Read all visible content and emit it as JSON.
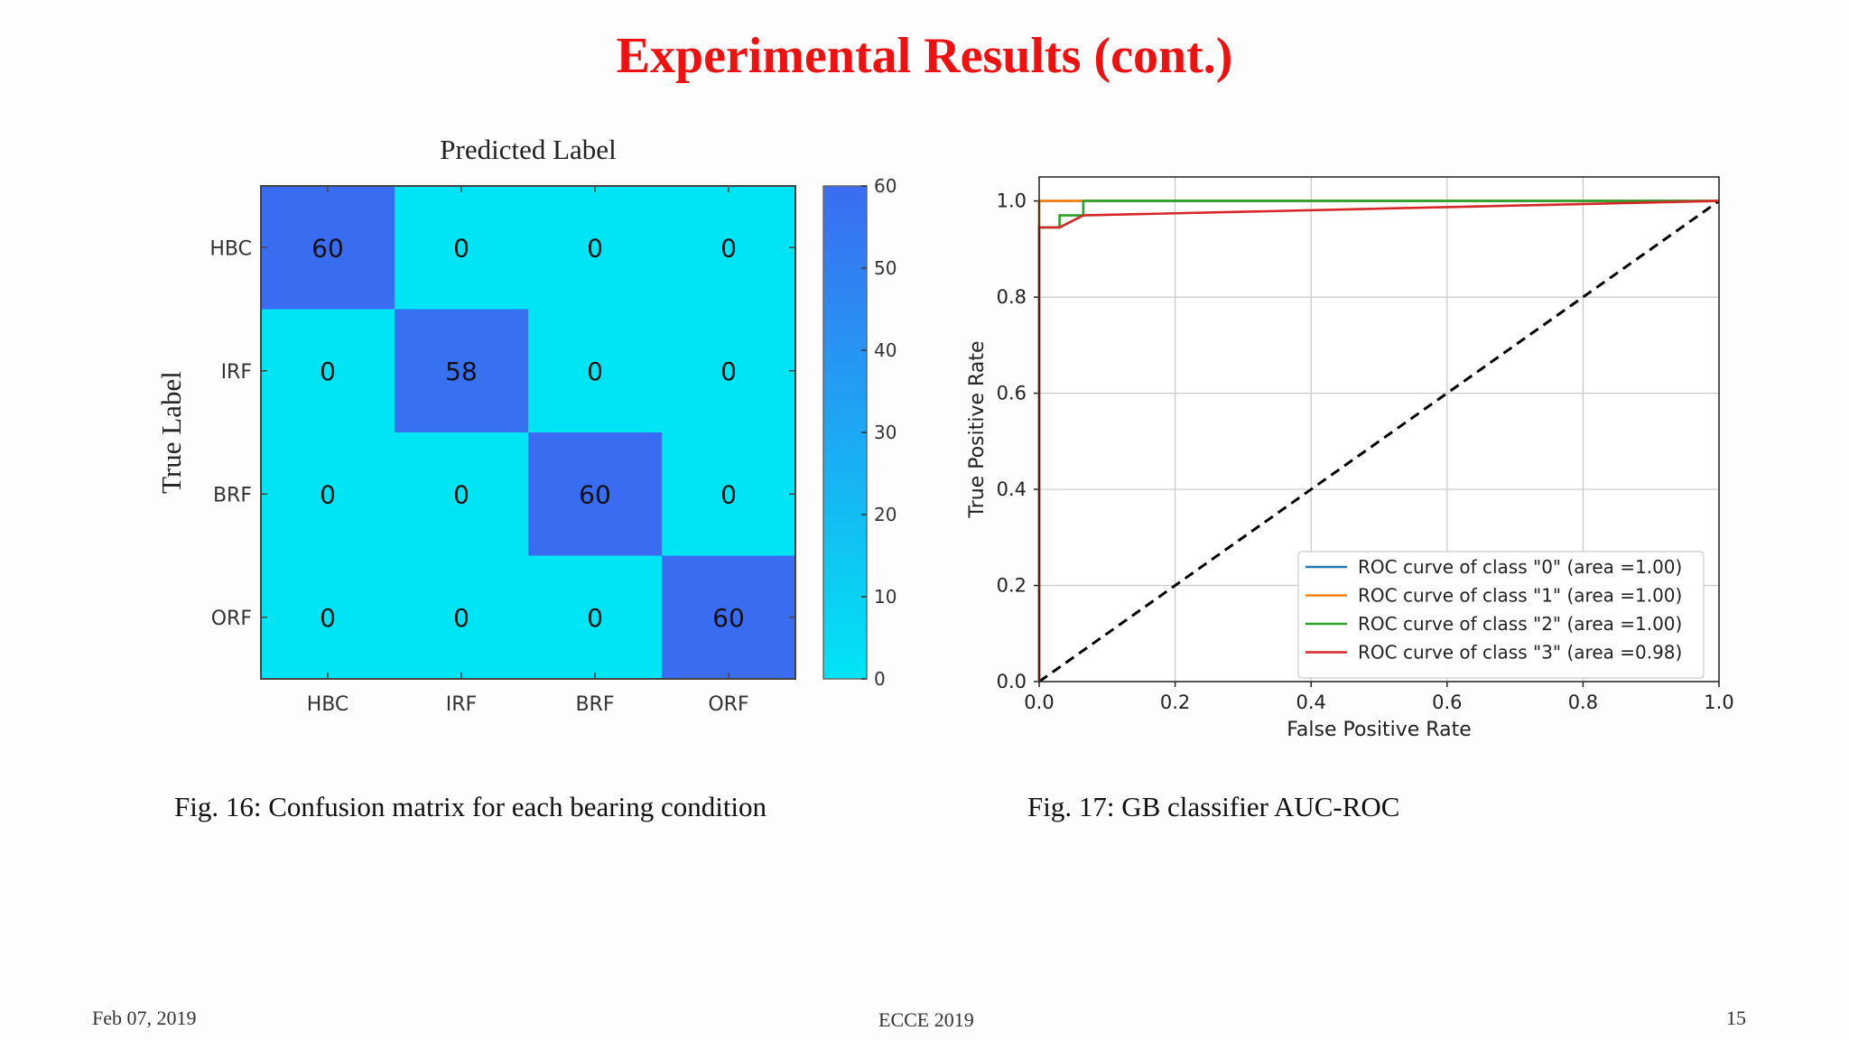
{
  "slide": {
    "title": "Experimental Results (cont.)",
    "caption_left": "Fig. 16: Confusion matrix for each bearing condition",
    "caption_right": "Fig. 17: GB classifier AUC-ROC",
    "footer_date": "Feb 07, 2019",
    "footer_conf": "ECCE 2019",
    "footer_page": "15"
  },
  "chart_data": [
    {
      "type": "heatmap",
      "title": "Predicted Label",
      "xlabel": "",
      "ylabel": "True Label",
      "x_categories": [
        "HBC",
        "IRF",
        "BRF",
        "ORF"
      ],
      "y_categories": [
        "HBC",
        "IRF",
        "BRF",
        "ORF"
      ],
      "values": [
        [
          60,
          0,
          0,
          0
        ],
        [
          0,
          58,
          0,
          0
        ],
        [
          0,
          0,
          60,
          0
        ],
        [
          0,
          0,
          0,
          60
        ]
      ],
      "colorbar": {
        "range": [
          0,
          60
        ],
        "ticks": [
          0,
          10,
          20,
          30,
          40,
          50,
          60
        ]
      },
      "colors": {
        "low": "#00e5f5",
        "high": "#3a6cf2"
      }
    },
    {
      "type": "line",
      "xlabel": "False Positive Rate",
      "ylabel": "True Positive Rate",
      "xlim": [
        0,
        1
      ],
      "ylim": [
        0,
        1.05
      ],
      "xticks": [
        "0.0",
        "0.2",
        "0.4",
        "0.6",
        "0.8",
        "1.0"
      ],
      "yticks": [
        "0.0",
        "0.2",
        "0.4",
        "0.6",
        "0.8",
        "1.0"
      ],
      "grid": true,
      "legend_position": "lower-right",
      "series": [
        {
          "name": "ROC curve of class \"0\" (area =1.00)",
          "color": "#1f77b4",
          "x": [
            0,
            0,
            1
          ],
          "y": [
            0,
            1.0,
            1.0
          ]
        },
        {
          "name": "ROC curve of class \"1\" (area =1.00)",
          "color": "#ff7f0e",
          "x": [
            0,
            0,
            1
          ],
          "y": [
            0,
            1.0,
            1.0
          ]
        },
        {
          "name": "ROC curve of class \"2\" (area =1.00)",
          "color": "#2ca02c",
          "x": [
            0,
            0,
            0.03,
            0.03,
            0.065,
            0.065,
            1
          ],
          "y": [
            0,
            0.945,
            0.945,
            0.97,
            0.97,
            1.0,
            1.0
          ]
        },
        {
          "name": "ROC curve of class \"3\" (area =0.98)",
          "color": "#d62728",
          "x": [
            0,
            0,
            0.03,
            0.065,
            1
          ],
          "y": [
            0,
            0.945,
            0.945,
            0.97,
            1.0
          ]
        }
      ],
      "diagonal": {
        "x": [
          0,
          1
        ],
        "y": [
          0,
          1
        ],
        "color": "#000000",
        "style": "dashed"
      }
    }
  ]
}
